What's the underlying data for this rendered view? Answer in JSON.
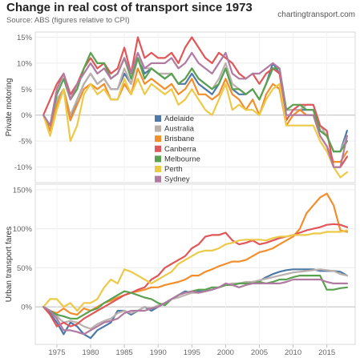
{
  "header": {
    "title": "Change in real cost of transport since 1973",
    "subtitle": "Source: ABS (figures relative to CPI)",
    "site": "chartingtransport.com"
  },
  "colors": {
    "Adelaide": "#4e79a7",
    "Australia": "#bab0ac",
    "Brisbane": "#f28e2b",
    "Canberra": "#e15759",
    "Melbourne": "#59a14f",
    "Perth": "#edc948",
    "Sydney": "#b07aa1"
  },
  "chart_data": [
    {
      "type": "line",
      "id": "private",
      "ylabel": "Private motoring",
      "ylim": [
        -13,
        16
      ],
      "yticks": [
        -10,
        -5,
        0,
        5,
        10,
        15
      ],
      "ytick_labels": [
        "-10%",
        "-5%",
        "0%",
        "5%",
        "10%",
        "15%"
      ],
      "x": [
        1973,
        1974,
        1975,
        1976,
        1977,
        1978,
        1979,
        1980,
        1981,
        1982,
        1983,
        1984,
        1985,
        1986,
        1987,
        1988,
        1989,
        1990,
        1991,
        1992,
        1993,
        1994,
        1995,
        1996,
        1997,
        1998,
        1999,
        2000,
        2001,
        2002,
        2003,
        2004,
        2005,
        2006,
        2007,
        2008,
        2009,
        2010,
        2011,
        2012,
        2013,
        2014,
        2015,
        2016,
        2017,
        2018
      ],
      "legend": [
        "Adelaide",
        "Australia",
        "Brisbane",
        "Canberra",
        "Melbourne",
        "Perth",
        "Sydney"
      ],
      "series": [
        {
          "name": "Adelaide",
          "values": [
            0,
            -3,
            3,
            5,
            -1,
            3,
            6,
            8,
            6,
            7,
            5,
            5,
            8,
            6,
            11,
            8,
            9,
            8,
            7,
            8,
            6,
            6,
            8,
            6,
            5,
            4,
            6,
            9,
            5,
            4,
            4,
            5,
            3,
            6,
            10,
            8,
            1,
            1,
            1,
            1,
            1,
            -3,
            -4,
            -7,
            -7,
            -3
          ]
        },
        {
          "name": "Australia",
          "values": [
            0,
            -2,
            3,
            5,
            0,
            3,
            6,
            8,
            6,
            7,
            5,
            5,
            9,
            6,
            11,
            9,
            9,
            8,
            8,
            8,
            6,
            7,
            9,
            7,
            6,
            5,
            7,
            10,
            6,
            5,
            4,
            5,
            3,
            6,
            9,
            8,
            1,
            1,
            1,
            2,
            2,
            -2,
            -4,
            -7,
            -7,
            -4
          ]
        },
        {
          "name": "Brisbane",
          "values": [
            0,
            -3,
            2,
            5,
            -1,
            2,
            5,
            6,
            5,
            6,
            3,
            3,
            6,
            4,
            9,
            6,
            7,
            6,
            5,
            6,
            4,
            5,
            7,
            4,
            4,
            3,
            4,
            7,
            4,
            3,
            1,
            3,
            0,
            4,
            6,
            5,
            -2,
            0,
            1,
            0,
            0,
            -4,
            -6,
            -9,
            -9,
            -7
          ]
        },
        {
          "name": "Canberra",
          "values": [
            0,
            3,
            6,
            8,
            4,
            6,
            9,
            11,
            9,
            10,
            8,
            9,
            13,
            8,
            15,
            11,
            12,
            11,
            11,
            12,
            10,
            13,
            15,
            13,
            11,
            10,
            12,
            11,
            10,
            8,
            7,
            8,
            6,
            8,
            9,
            8,
            -1,
            1,
            2,
            2,
            2,
            -2,
            -3,
            -10,
            -10,
            -8
          ]
        },
        {
          "name": "Melbourne",
          "values": [
            0,
            -2,
            4,
            7,
            3,
            5,
            9,
            12,
            10,
            10,
            7,
            8,
            11,
            7,
            11,
            7,
            9,
            8,
            7,
            8,
            6,
            7,
            9,
            7,
            6,
            5,
            6,
            9,
            5,
            5,
            4,
            5,
            3,
            6,
            9,
            9,
            1,
            2,
            2,
            1,
            1,
            -3,
            -4,
            -7,
            -7,
            -5
          ]
        },
        {
          "name": "Perth",
          "values": [
            0,
            -4,
            1,
            5,
            -5,
            -2,
            4,
            6,
            4,
            5,
            3,
            3,
            7,
            4,
            7,
            4,
            6,
            5,
            4,
            5,
            2,
            3,
            5,
            3,
            1,
            0,
            3,
            6,
            1,
            2,
            1,
            1,
            0,
            3,
            5,
            6,
            -2,
            -2,
            -2,
            -2,
            -2,
            -5,
            -7,
            -10,
            -12,
            -11
          ]
        },
        {
          "name": "Sydney",
          "values": [
            0,
            -2,
            5,
            8,
            3,
            6,
            8,
            10,
            8,
            9,
            7,
            8,
            11,
            8,
            12,
            9,
            10,
            10,
            10,
            11,
            9,
            10,
            12,
            10,
            9,
            8,
            10,
            12,
            8,
            7,
            7,
            8,
            8,
            9,
            10,
            9,
            0,
            0,
            0,
            0,
            0,
            -4,
            -6,
            -10,
            -10,
            -4
          ]
        }
      ]
    },
    {
      "type": "line",
      "id": "fares",
      "ylabel": "Urban transport fares",
      "ylim": [
        -48,
        157
      ],
      "yticks": [
        0,
        50,
        100,
        150
      ],
      "ytick_labels": [
        "0%",
        "50%",
        "100%",
        "150%"
      ],
      "xticks": [
        1975,
        1980,
        1985,
        1990,
        1995,
        2000,
        2005,
        2010,
        2015
      ],
      "x": [
        1973,
        1974,
        1975,
        1976,
        1977,
        1978,
        1979,
        1980,
        1981,
        1982,
        1983,
        1984,
        1985,
        1986,
        1987,
        1988,
        1989,
        1990,
        1991,
        1992,
        1993,
        1994,
        1995,
        1996,
        1997,
        1998,
        1999,
        2000,
        2001,
        2002,
        2003,
        2004,
        2005,
        2006,
        2007,
        2008,
        2009,
        2010,
        2011,
        2012,
        2013,
        2014,
        2015,
        2016,
        2017,
        2018
      ],
      "series": [
        {
          "name": "Adelaide",
          "values": [
            0,
            -8,
            -20,
            -35,
            -20,
            -25,
            -35,
            -40,
            -30,
            -25,
            -20,
            -5,
            -5,
            -10,
            -5,
            0,
            -5,
            0,
            5,
            10,
            15,
            20,
            18,
            20,
            20,
            22,
            25,
            28,
            28,
            30,
            30,
            32,
            33,
            38,
            42,
            45,
            47,
            48,
            48,
            48,
            48,
            46,
            46,
            46,
            45,
            40
          ]
        },
        {
          "name": "Australia",
          "values": [
            0,
            -5,
            -12,
            -20,
            -18,
            -20,
            -25,
            -28,
            -22,
            -18,
            -15,
            -8,
            -5,
            -8,
            -5,
            0,
            -2,
            2,
            5,
            10,
            12,
            15,
            18,
            18,
            20,
            22,
            25,
            28,
            30,
            30,
            32,
            32,
            34,
            36,
            38,
            40,
            42,
            44,
            45,
            46,
            47,
            48,
            47,
            46,
            42,
            40
          ]
        },
        {
          "name": "Brisbane",
          "values": [
            0,
            -5,
            -8,
            -2,
            -8,
            -10,
            -2,
            -5,
            0,
            5,
            8,
            12,
            15,
            18,
            20,
            22,
            25,
            25,
            28,
            30,
            32,
            35,
            40,
            40,
            45,
            48,
            52,
            55,
            58,
            58,
            60,
            65,
            70,
            72,
            75,
            80,
            85,
            90,
            100,
            120,
            130,
            140,
            145,
            130,
            98,
            96
          ]
        },
        {
          "name": "Canberra",
          "values": [
            0,
            -10,
            -25,
            -20,
            -25,
            -22,
            -15,
            -10,
            -5,
            0,
            5,
            10,
            15,
            18,
            22,
            25,
            35,
            40,
            50,
            55,
            60,
            65,
            75,
            80,
            90,
            92,
            92,
            95,
            85,
            80,
            82,
            85,
            80,
            82,
            85,
            88,
            90,
            92,
            95,
            98,
            100,
            102,
            105,
            106,
            105,
            102
          ]
        },
        {
          "name": "Melbourne",
          "values": [
            0,
            -5,
            -10,
            -12,
            -15,
            -15,
            -10,
            -5,
            -2,
            5,
            10,
            15,
            20,
            18,
            15,
            12,
            10,
            5,
            2,
            10,
            15,
            18,
            20,
            22,
            22,
            25,
            25,
            28,
            28,
            30,
            30,
            30,
            32,
            30,
            32,
            35,
            35,
            38,
            40,
            40,
            40,
            40,
            22,
            22,
            24,
            25
          ]
        },
        {
          "name": "Perth",
          "values": [
            0,
            10,
            10,
            0,
            5,
            -5,
            5,
            5,
            10,
            25,
            35,
            30,
            48,
            45,
            40,
            35,
            30,
            35,
            40,
            45,
            55,
            60,
            65,
            70,
            72,
            72,
            75,
            80,
            82,
            85,
            86,
            86,
            86,
            85,
            88,
            90,
            90,
            92,
            92,
            92,
            94,
            94,
            96,
            96,
            96,
            98
          ]
        },
        {
          "name": "Sydney",
          "values": [
            0,
            -5,
            -15,
            -30,
            -30,
            -32,
            -35,
            -30,
            -25,
            -20,
            -18,
            -15,
            -8,
            -5,
            -5,
            -5,
            -2,
            0,
            5,
            10,
            15,
            18,
            20,
            18,
            20,
            22,
            25,
            30,
            28,
            25,
            28,
            30,
            30,
            30,
            30,
            30,
            32,
            35,
            35,
            35,
            35,
            35,
            32,
            30,
            30,
            30
          ]
        }
      ]
    }
  ]
}
